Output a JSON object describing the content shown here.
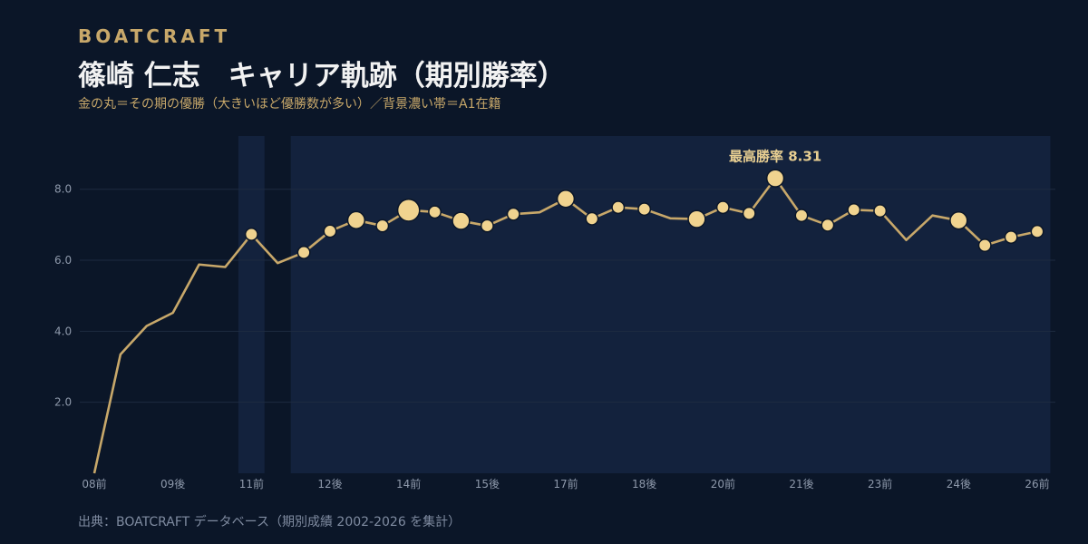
{
  "header": {
    "brand": "BOATCRAFT",
    "title": "篠崎 仁志　キャリア軌跡（期別勝率）",
    "subtitle": "金の丸＝その期の優勝（大きいほど優勝数が多い）／背景濃い帯＝A1在籍"
  },
  "footer": {
    "source": "出典：BOATCRAFT データベース（期別成績 2002-2026 を集計）"
  },
  "colors": {
    "background": "#0b1628",
    "band": "#13223d",
    "line": "#c8a86a",
    "marker": "#f0d38f",
    "grid": "#1e2b40"
  },
  "chart_data": {
    "type": "line",
    "x": [
      "08前",
      "08後",
      "09前",
      "09後",
      "10前",
      "10後",
      "11前",
      "11後",
      "12前",
      "12後",
      "13前",
      "13後",
      "14前",
      "14後",
      "15前",
      "15後",
      "16前",
      "16後",
      "17前",
      "17後",
      "18前",
      "18後",
      "19前",
      "19後",
      "20前",
      "20後",
      "21前",
      "21後",
      "22前",
      "22後",
      "23前",
      "23後",
      "24前",
      "24後",
      "25前",
      "25後",
      "26前"
    ],
    "values": [
      0.0,
      3.35,
      4.15,
      4.52,
      5.88,
      5.81,
      6.73,
      5.92,
      6.22,
      6.82,
      7.13,
      6.97,
      7.41,
      7.36,
      7.11,
      6.97,
      7.3,
      7.35,
      7.73,
      7.17,
      7.49,
      7.44,
      7.18,
      7.16,
      7.49,
      7.32,
      8.31,
      7.26,
      6.99,
      7.42,
      7.39,
      6.57,
      7.26,
      7.12,
      6.42,
      6.65,
      6.81
    ],
    "wins": [
      0,
      0,
      0,
      0,
      0,
      0,
      1,
      0,
      1,
      1,
      2,
      1,
      3,
      1,
      2,
      1,
      1,
      0,
      2,
      1,
      1,
      1,
      0,
      2,
      1,
      1,
      2,
      1,
      1,
      1,
      1,
      0,
      0,
      2,
      1,
      1,
      1
    ],
    "a1_bands": [
      [
        "11前",
        "11前"
      ],
      [
        "12前",
        "26前"
      ]
    ],
    "tick_labels": [
      "08前",
      "09後",
      "11前",
      "12後",
      "14前",
      "15後",
      "17前",
      "18後",
      "20前",
      "21後",
      "23前",
      "24後",
      "26前"
    ],
    "y_ticks": [
      "2.0",
      "4.0",
      "6.0",
      "8.0"
    ],
    "ylim": [
      0,
      9.5
    ],
    "annotation": {
      "label": "最高勝率 8.31",
      "at": "21前"
    },
    "grid": true
  }
}
